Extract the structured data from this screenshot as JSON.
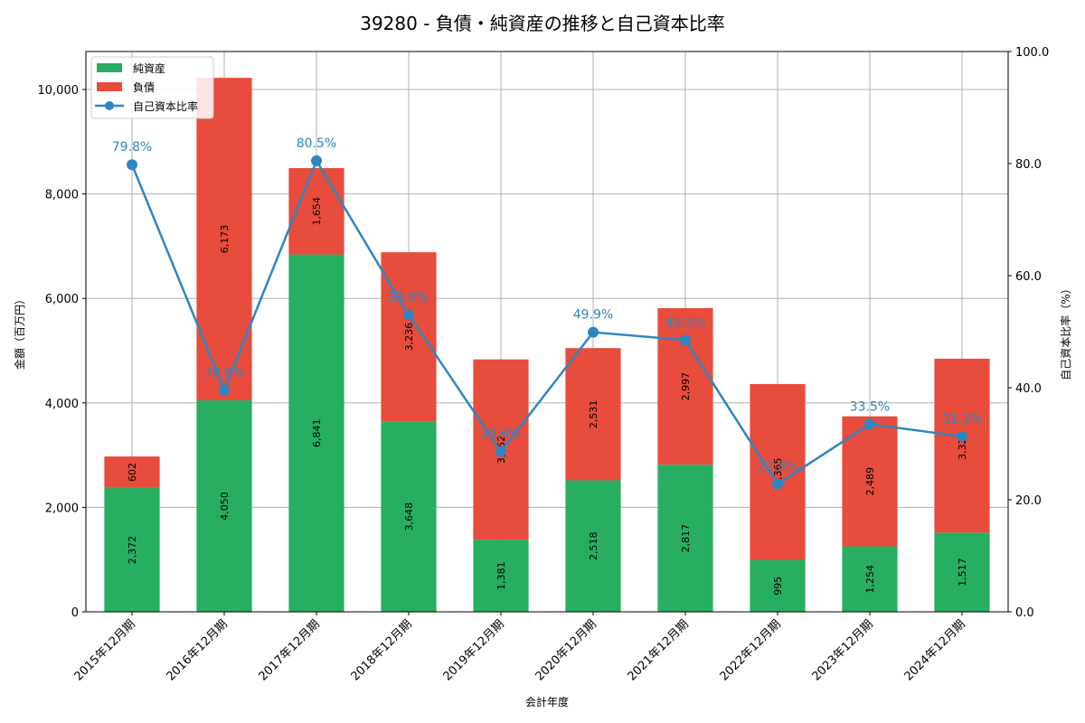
{
  "chart_data": {
    "type": "bar",
    "title": "39280 - 負債・純資産の推移と自己資本比率",
    "xlabel": "会計年度",
    "ylabel": "金額（百万円）",
    "y2label": "自己資本比率（%）",
    "categories": [
      "2015年12月期",
      "2016年12月期",
      "2017年12月期",
      "2018年12月期",
      "2019年12月期",
      "2020年12月期",
      "2021年12月期",
      "2022年12月期",
      "2023年12月期",
      "2024年12月期"
    ],
    "series": [
      {
        "name": "純資産",
        "kind": "stacked-bar",
        "axis": "left",
        "color": "#27ae60",
        "values": [
          2372,
          4050,
          6841,
          3648,
          1381,
          2518,
          2817,
          995,
          1254,
          1517
        ],
        "labels": [
          "2,372",
          "4,050",
          "6,841",
          "3,648",
          "1,381",
          "2,518",
          "2,817",
          "995",
          "1,254",
          "1,517"
        ]
      },
      {
        "name": "負債",
        "kind": "stacked-bar",
        "axis": "left",
        "color": "#e74c3c",
        "values": [
          602,
          6173,
          1654,
          3236,
          3452,
          2531,
          2997,
          3365,
          2489,
          3329
        ],
        "labels": [
          "602",
          "6,173",
          "1,654",
          "3,236",
          "3,452",
          "2,531",
          "2,997",
          "3,365",
          "2,489",
          "3,329"
        ]
      },
      {
        "name": "自己資本比率",
        "kind": "line",
        "axis": "right",
        "color": "#2e86c1",
        "values": [
          79.8,
          39.6,
          80.5,
          53.0,
          28.6,
          49.9,
          48.5,
          22.8,
          33.5,
          31.3
        ],
        "labels": [
          "79.8%",
          "39.6%",
          "80.5%",
          "53.0%",
          "28.6%",
          "49.9%",
          "48.5%",
          "22.8%",
          "33.5%",
          "31.3%"
        ]
      }
    ],
    "ylim": [
      0,
      10727
    ],
    "yticks": [
      0,
      2000,
      4000,
      6000,
      8000,
      10000
    ],
    "ytick_labels": [
      "0",
      "2,000",
      "4,000",
      "6,000",
      "8,000",
      "10,000"
    ],
    "y2lim": [
      0,
      100
    ],
    "y2ticks": [
      0,
      20,
      40,
      60,
      80,
      100
    ],
    "y2tick_labels": [
      "0.0",
      "20.0",
      "40.0",
      "60.0",
      "80.0",
      "100.0"
    ],
    "grid": true,
    "legend_position": "upper left"
  }
}
